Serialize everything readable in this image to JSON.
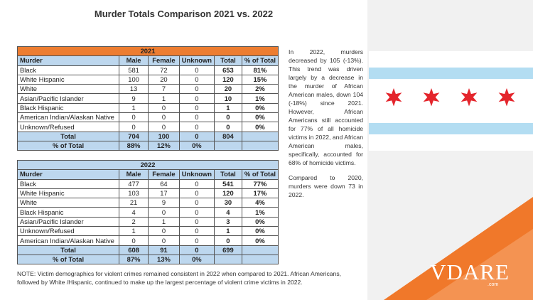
{
  "title": "Murder Totals Comparison 2021 vs. 2022",
  "header": {
    "murder": "Murder",
    "male": "Male",
    "female": "Female",
    "unknown": "Unknown",
    "total": "Total",
    "pct": "% of Total"
  },
  "t2021": {
    "year": "2021",
    "rows": [
      {
        "label": "Black",
        "male": "581",
        "female": "72",
        "unknown": "0",
        "total": "653",
        "pct": "81%"
      },
      {
        "label": "White Hispanic",
        "male": "100",
        "female": "20",
        "unknown": "0",
        "total": "120",
        "pct": "15%"
      },
      {
        "label": "White",
        "male": "13",
        "female": "7",
        "unknown": "0",
        "total": "20",
        "pct": "2%"
      },
      {
        "label": "Asian/Pacific Islander",
        "male": "9",
        "female": "1",
        "unknown": "0",
        "total": "10",
        "pct": "1%"
      },
      {
        "label": "Black Hispanic",
        "male": "1",
        "female": "0",
        "unknown": "0",
        "total": "1",
        "pct": "0%"
      },
      {
        "label": "American Indian/Alaskan Native",
        "male": "0",
        "female": "0",
        "unknown": "0",
        "total": "0",
        "pct": "0%"
      },
      {
        "label": "Unknown/Refused",
        "male": "0",
        "female": "0",
        "unknown": "0",
        "total": "0",
        "pct": "0%"
      }
    ],
    "total_row": {
      "label": "Total",
      "male": "704",
      "female": "100",
      "unknown": "0",
      "total": "804"
    },
    "pct_row": {
      "label": "% of Total",
      "male": "88%",
      "female": "12%",
      "unknown": "0%"
    }
  },
  "t2022": {
    "year": "2022",
    "rows": [
      {
        "label": "Black",
        "male": "477",
        "female": "64",
        "unknown": "0",
        "total": "541",
        "pct": "77%"
      },
      {
        "label": "White Hispanic",
        "male": "103",
        "female": "17",
        "unknown": "0",
        "total": "120",
        "pct": "17%"
      },
      {
        "label": "White",
        "male": "21",
        "female": "9",
        "unknown": "0",
        "total": "30",
        "pct": "4%"
      },
      {
        "label": "Black Hispanic",
        "male": "4",
        "female": "0",
        "unknown": "0",
        "total": "4",
        "pct": "1%"
      },
      {
        "label": "Asian/Pacific Islander",
        "male": "2",
        "female": "1",
        "unknown": "0",
        "total": "3",
        "pct": "0%"
      },
      {
        "label": "Unknown/Refused",
        "male": "1",
        "female": "0",
        "unknown": "0",
        "total": "1",
        "pct": "0%"
      },
      {
        "label": "American Indian/Alaskan Native",
        "male": "0",
        "female": "0",
        "unknown": "0",
        "total": "0",
        "pct": "0%"
      }
    ],
    "total_row": {
      "label": "Total",
      "male": "608",
      "female": "91",
      "unknown": "0",
      "total": "699"
    },
    "pct_row": {
      "label": "% of Total",
      "male": "87%",
      "female": "13%",
      "unknown": "0%"
    }
  },
  "side_text": {
    "para1": "In 2022, murders decreased by 105 (-13%). This trend was driven largely by a decrease in the murder of African American males, down 104 (-18%) since 2021. However, African Americans still accounted for 77% of all homicide victims in 2022, and African American males, specifically, accounted for 68% of homicide victims.",
    "para2": "Compared to 2020, murders were down 73 in 2022."
  },
  "note": "NOTE: Victim demographics for violent crimes remained consistent in 2022 when compared to 2021. African Americans, followed by White /Hispanic, continued to make up the largest percentage of violent crime victims in 2022.",
  "logo": {
    "text": "VDARE",
    "sub": ".com"
  },
  "colors": {
    "orange": "#ed7d31",
    "header_blue": "#bdd7ee",
    "flag_blue": "#b3ddf2",
    "flag_star": "#e4252c"
  }
}
